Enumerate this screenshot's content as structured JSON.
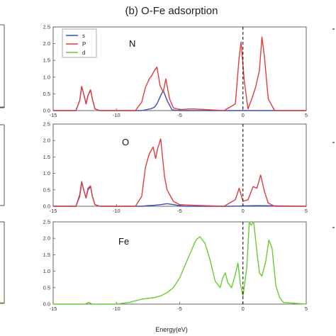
{
  "title": "(b) O-Fe adsorption",
  "xlabel": "Energy(eV)",
  "colors": {
    "s": "#3a4fb0",
    "p": "#e03c3c",
    "d": "#66cc33",
    "axis": "#555555",
    "fermi": "#000000"
  },
  "legend": {
    "placement": "top-left of top panel",
    "items": [
      {
        "name": "s",
        "color": "#3a4fb0"
      },
      {
        "name": "P",
        "color": "#e03c3c"
      },
      {
        "name": "d",
        "color": "#66cc33"
      }
    ]
  },
  "chart_data": [
    {
      "type": "line",
      "panel_label": "N",
      "xlim": [
        -15,
        5
      ],
      "ylim": [
        0,
        2.5
      ],
      "x_ticks": [
        -15,
        -10,
        -5,
        0,
        5
      ],
      "y_ticks": [
        0.0,
        0.5,
        1.0,
        1.5,
        2.0,
        2.5
      ],
      "fermi_level": 0,
      "series": [
        {
          "name": "s",
          "color": "#3a4fb0",
          "x": [
            -15,
            -13.2,
            -12.9,
            -12.75,
            -12.55,
            -12.4,
            -12.25,
            -12.05,
            -11.9,
            -11.7,
            -11.3,
            -8,
            -7.3,
            -7.0,
            -6.8,
            -6.5,
            -6.3,
            -6.0,
            -5.6,
            -5.0,
            0,
            5
          ],
          "y": [
            0,
            0,
            0.3,
            0.72,
            0.45,
            0.2,
            0.45,
            0.62,
            0.35,
            0.05,
            0,
            0,
            0.05,
            0.1,
            0.2,
            0.45,
            0.6,
            0.3,
            0.02,
            0,
            0,
            0
          ]
        },
        {
          "name": "P",
          "color": "#e03c3c",
          "x": [
            -15,
            -13.2,
            -12.9,
            -12.75,
            -12.55,
            -12.4,
            -12.25,
            -12.05,
            -11.9,
            -11.7,
            -11.3,
            -8.5,
            -8.0,
            -7.7,
            -7.4,
            -7.2,
            -7.0,
            -6.8,
            -6.55,
            -6.3,
            -6.1,
            -5.8,
            -5.5,
            -5.0,
            -4.0,
            -1.5,
            -0.6,
            -0.3,
            -0.15,
            0.1,
            0.4,
            0.7,
            1.0,
            1.3,
            1.5,
            1.7,
            2.0,
            2.5,
            3.0,
            5
          ],
          "y": [
            0,
            0,
            0.3,
            0.72,
            0.45,
            0.2,
            0.45,
            0.62,
            0.35,
            0.05,
            0,
            0,
            0.25,
            0.7,
            0.95,
            1.05,
            1.2,
            1.3,
            0.75,
            0.55,
            0.95,
            0.35,
            0.08,
            0.03,
            0.05,
            0,
            0.2,
            1.6,
            2.05,
            0.9,
            0.05,
            0.35,
            0.7,
            1.2,
            2.2,
            1.6,
            0.35,
            0,
            0,
            0
          ]
        }
      ]
    },
    {
      "type": "line",
      "panel_label": "O",
      "xlim": [
        -15,
        5
      ],
      "ylim": [
        0,
        2.5
      ],
      "x_ticks": [
        -15,
        -10,
        -5,
        0,
        5
      ],
      "y_ticks": [
        0.0,
        0.5,
        1.0,
        1.5,
        2.0,
        2.5
      ],
      "fermi_level": 0,
      "series": [
        {
          "name": "s",
          "color": "#3a4fb0",
          "x": [
            -15,
            -13.2,
            -12.9,
            -12.75,
            -12.55,
            -12.4,
            -12.25,
            -12.05,
            -11.9,
            -11.7,
            -11.3,
            -8,
            -7.5,
            -7.0,
            -6.5,
            -6.0,
            -5.5,
            -5.0,
            -4.5,
            -1.0,
            1.0,
            5
          ],
          "y": [
            0,
            0,
            0.35,
            0.75,
            0.45,
            0.25,
            0.5,
            0.6,
            0.3,
            0.05,
            0,
            0,
            0.02,
            0.03,
            0.05,
            0.08,
            0.05,
            0.02,
            0,
            0,
            0.02,
            0
          ]
        },
        {
          "name": "P",
          "color": "#e03c3c",
          "x": [
            -15,
            -13.2,
            -12.9,
            -12.75,
            -12.55,
            -12.4,
            -12.25,
            -12.05,
            -11.9,
            -11.7,
            -11.3,
            -8.5,
            -8.0,
            -7.7,
            -7.4,
            -7.1,
            -6.9,
            -6.75,
            -6.5,
            -6.2,
            -6.0,
            -5.5,
            -5.0,
            -4.0,
            -1.5,
            -0.6,
            -0.3,
            0.0,
            0.4,
            0.8,
            1.1,
            1.4,
            1.7,
            2.0,
            2.5,
            3.0,
            5
          ],
          "y": [
            0,
            0,
            0.3,
            0.72,
            0.45,
            0.25,
            0.55,
            0.62,
            0.3,
            0.05,
            0,
            0,
            0.3,
            1.2,
            1.6,
            1.8,
            1.45,
            1.75,
            2.05,
            0.9,
            0.5,
            0.15,
            0.05,
            0.03,
            0,
            0.2,
            0.55,
            0.15,
            0.2,
            0.6,
            0.55,
            0.95,
            0.45,
            0.1,
            0,
            0,
            0
          ]
        }
      ]
    },
    {
      "type": "line",
      "panel_label": "Fe",
      "xlim": [
        -15,
        5
      ],
      "ylim": [
        0,
        2.5
      ],
      "x_ticks": [
        -15,
        -10,
        -5,
        0,
        5
      ],
      "y_ticks": [
        0.0,
        0.5,
        1.0,
        1.5,
        2.0,
        2.5
      ],
      "fermi_level": 0,
      "series": [
        {
          "name": "d",
          "color": "#66cc33",
          "x": [
            -15,
            -12.5,
            -12.2,
            -11.9,
            -10.0,
            -9.0,
            -8.0,
            -7.0,
            -6.5,
            -6.0,
            -5.5,
            -5.0,
            -4.5,
            -4.0,
            -3.7,
            -3.4,
            -3.0,
            -2.6,
            -2.2,
            -1.8,
            -1.6,
            -1.4,
            -1.2,
            -0.9,
            -0.6,
            -0.4,
            -0.2,
            0.0,
            0.3,
            0.5,
            0.65,
            0.85,
            1.1,
            1.3,
            1.5,
            1.8,
            2.05,
            2.3,
            2.6,
            2.9,
            3.2,
            5
          ],
          "y": [
            0,
            0,
            0.05,
            0,
            0,
            0.05,
            0.15,
            0.2,
            0.25,
            0.35,
            0.5,
            0.8,
            1.25,
            1.7,
            1.95,
            2.05,
            1.85,
            1.35,
            0.7,
            0.5,
            0.8,
            0.95,
            0.65,
            0.5,
            0.9,
            1.25,
            0.6,
            0.25,
            1.1,
            2.5,
            2.4,
            2.5,
            1.6,
            0.95,
            0.85,
            1.3,
            1.95,
            1.7,
            0.55,
            0.2,
            0.05,
            0
          ]
        }
      ]
    }
  ]
}
